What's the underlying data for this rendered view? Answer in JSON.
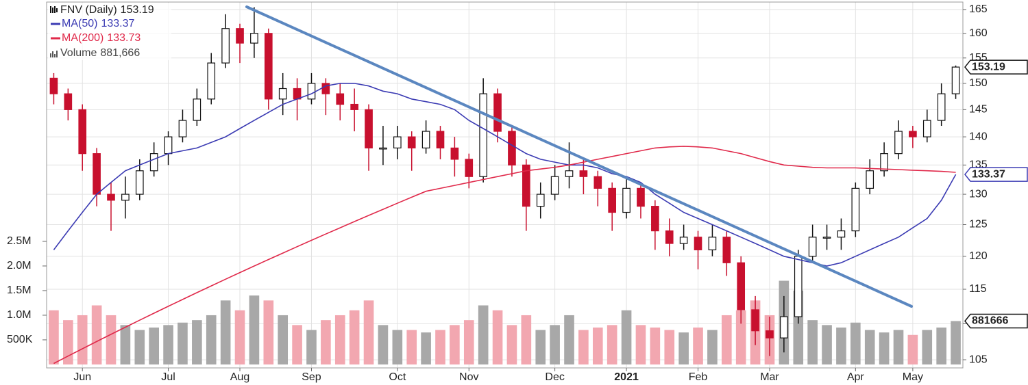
{
  "chart_data": {
    "type": "candlestick",
    "log": true,
    "grid": true,
    "up_color": "#111111",
    "down_color": "#c8102e",
    "volume_up_color": "#a8a8a8",
    "volume_down_color": "#f2a7b0",
    "categories": [
      null,
      null,
      "Jun",
      null,
      null,
      null,
      null,
      null,
      "Jul",
      null,
      null,
      null,
      null,
      "Aug",
      null,
      null,
      null,
      null,
      "Sep",
      null,
      null,
      null,
      null,
      null,
      "Oct",
      null,
      null,
      null,
      null,
      "Nov",
      null,
      null,
      null,
      null,
      null,
      "Dec",
      null,
      null,
      null,
      null,
      "2021",
      null,
      null,
      null,
      null,
      "Feb",
      null,
      null,
      null,
      null,
      "Mar",
      null,
      null,
      null,
      null,
      null,
      "Apr",
      null,
      null,
      null,
      "May",
      null,
      null,
      null
    ],
    "ylim": [
      103.9,
      166.6
    ],
    "yticks": [
      105,
      110,
      115,
      120,
      125,
      130,
      135,
      140,
      145,
      150,
      155,
      160,
      165
    ],
    "y2lim": [
      -70000,
      7360000
    ],
    "y2ticks": [
      {
        "value": 500000,
        "label": "500K"
      },
      {
        "value": 1000000,
        "label": "1.0M"
      },
      {
        "value": 1500000,
        "label": "1.5M"
      },
      {
        "value": 2000000,
        "label": "2.0M"
      },
      {
        "value": 2500000,
        "label": "2.5M"
      }
    ],
    "series": [
      {
        "name": "FNV (Daily)",
        "type": "candlestick",
        "open": [
          151,
          148,
          145,
          137,
          130,
          129,
          130,
          134,
          137,
          140,
          143,
          147,
          154,
          161,
          158,
          160,
          147,
          149,
          147,
          150,
          148,
          146,
          145,
          138,
          138,
          140,
          138,
          141,
          138,
          136,
          133,
          148,
          141,
          135,
          128,
          130,
          133,
          134,
          133,
          131,
          127,
          131,
          128,
          124,
          122,
          123,
          121,
          123,
          119,
          112,
          109,
          108,
          111,
          120,
          123,
          123,
          124,
          131,
          134,
          137,
          141,
          140,
          143,
          148
        ],
        "high": [
          152,
          149,
          146,
          138,
          132,
          133,
          136,
          139,
          141,
          145,
          149,
          156,
          164,
          162,
          165.5,
          161,
          152,
          151,
          152,
          151,
          150,
          149,
          146,
          142,
          142,
          141,
          143,
          142,
          140,
          137,
          151,
          149,
          142,
          136,
          132,
          135,
          139,
          136,
          134,
          132,
          133,
          132,
          129,
          126,
          125,
          124,
          125,
          124,
          120,
          114,
          111,
          114,
          121,
          125,
          125,
          126,
          132,
          136,
          139,
          143,
          142,
          145,
          150,
          153.5
        ],
        "low": [
          146,
          143,
          134,
          128,
          124,
          126,
          129,
          133,
          135,
          139,
          142,
          146,
          153,
          154,
          155,
          145,
          144,
          143,
          146,
          144,
          143,
          141,
          134,
          135,
          136,
          134,
          137,
          136,
          133,
          131,
          132,
          139,
          133,
          124,
          126,
          129,
          131,
          130,
          128,
          124,
          126,
          126,
          121,
          120,
          121,
          118,
          120,
          117,
          110,
          107,
          105.5,
          106,
          110,
          119,
          121,
          121,
          123,
          130,
          133,
          136,
          138,
          139,
          142,
          147
        ],
        "close": [
          148,
          145,
          137,
          130,
          129,
          130,
          134,
          137,
          140,
          143,
          147,
          154,
          161,
          158,
          160,
          147,
          149,
          147,
          150,
          148,
          146,
          145,
          138,
          138,
          140,
          138,
          141,
          138,
          136,
          133,
          148,
          141,
          135,
          128,
          130,
          133,
          134,
          133,
          131,
          127,
          131,
          128,
          124,
          122,
          123,
          121,
          123,
          119,
          112,
          109,
          108,
          111,
          120,
          123,
          123,
          124,
          131,
          134,
          137,
          141,
          140,
          143,
          148,
          153.19
        ]
      },
      {
        "name": "MA(50)",
        "type": "line",
        "color": "#3b3bb3",
        "values": [
          121,
          124,
          127,
          130,
          132,
          134,
          135,
          136,
          137,
          137.5,
          138,
          139,
          140,
          141.5,
          143,
          144.5,
          146,
          147,
          148,
          149.5,
          150,
          150,
          149.5,
          148.5,
          148,
          147,
          146.5,
          146,
          145,
          143,
          141.5,
          140,
          138.5,
          137,
          136,
          135.5,
          135,
          135,
          134.5,
          133.5,
          133,
          132,
          130,
          128.5,
          127,
          126,
          125,
          124,
          123,
          122,
          121,
          120,
          119.5,
          119,
          118.5,
          119,
          120,
          121,
          122,
          123,
          124.5,
          126,
          129,
          133.37
        ]
      },
      {
        "name": "MA(200)",
        "type": "line",
        "color": "#e0294a",
        "values": [
          104.5,
          105.5,
          106.5,
          107.5,
          108.5,
          109.5,
          110.5,
          111.5,
          112.5,
          113.5,
          114.5,
          115.5,
          116.5,
          117.5,
          118.5,
          119.5,
          120.5,
          121.5,
          122.5,
          123.5,
          124.5,
          125.5,
          126.5,
          127.5,
          128.5,
          129.5,
          130.5,
          131,
          131.5,
          132,
          132.5,
          133,
          133.5,
          134,
          134.3,
          134.6,
          135,
          135.5,
          136,
          136.5,
          137,
          137.5,
          138,
          138.2,
          138.3,
          138.2,
          138,
          137.5,
          137,
          136.3,
          135.6,
          135,
          134.8,
          134.6,
          134.5,
          134.5,
          134.5,
          134.4,
          134.3,
          134.2,
          134.1,
          134,
          133.9,
          133.73
        ]
      },
      {
        "name": "Volume",
        "type": "bar",
        "axis": "y2",
        "values": [
          1100000,
          900000,
          1000000,
          1200000,
          1000000,
          800000,
          700000,
          750000,
          800000,
          850000,
          900000,
          1000000,
          1300000,
          1100000,
          1400000,
          1300000,
          1000000,
          800000,
          700000,
          900000,
          1000000,
          1100000,
          1300000,
          800000,
          700000,
          700000,
          650000,
          700000,
          800000,
          900000,
          1200000,
          1100000,
          800000,
          1000000,
          700000,
          800000,
          1000000,
          700000,
          750000,
          800000,
          1100000,
          800000,
          750000,
          700000,
          650000,
          750000,
          700000,
          1000000,
          1100000,
          1300000,
          1000000,
          1700000,
          1500000,
          900000,
          800000,
          750000,
          850000,
          700000,
          650000,
          700000,
          600000,
          700000,
          750000,
          881666
        ],
        "value_labels": [
          null,
          null,
          null,
          null,
          null,
          null,
          null,
          null,
          null,
          null,
          null,
          null,
          null,
          null,
          null,
          null,
          null,
          null,
          null,
          null,
          null,
          null,
          null,
          null,
          null,
          null,
          null,
          null,
          null,
          null,
          null,
          null,
          null,
          null,
          null,
          null,
          null,
          null,
          null,
          null,
          null,
          null,
          null,
          null,
          null,
          null,
          null,
          null,
          null,
          null,
          null,
          null,
          null,
          null,
          null,
          null,
          null,
          null,
          null,
          null,
          null,
          null,
          null,
          "881,666"
        ]
      }
    ]
  }
}
